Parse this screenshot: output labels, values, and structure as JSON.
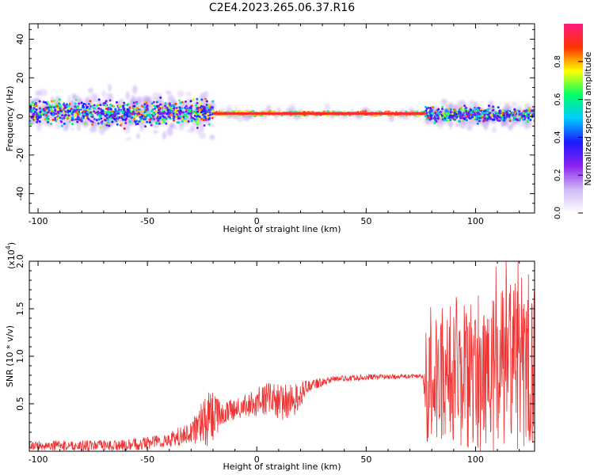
{
  "title": "C2E4.2023.265.06.37.R16",
  "chart_data": [
    {
      "type": "heatmap",
      "xlabel": "Height of straight line (km)",
      "ylabel": "Frequency (Hz)",
      "xlim": [
        -104,
        127
      ],
      "ylim": [
        -50,
        48
      ],
      "xticks": [
        -100,
        -50,
        0,
        50,
        100
      ],
      "yticks": [
        -40,
        -20,
        0,
        20,
        40
      ],
      "colorbar": {
        "label": "Normalized spectral amplitude",
        "range": [
          0,
          1
        ],
        "ticks": [
          0.0,
          0.2,
          0.4,
          0.6,
          0.8
        ],
        "colors": [
          "#ffffff",
          "#cfb8f5",
          "#8a20f0",
          "#1a1aff",
          "#00ccff",
          "#00ff66",
          "#ffff00",
          "#ff3300",
          "#ff1a80"
        ]
      },
      "band": {
        "segments": [
          {
            "x_start": -104,
            "x_end": -20,
            "center_hz": 2,
            "spread_hz": 7,
            "style": "scattered"
          },
          {
            "x_start": -20,
            "x_end": 77,
            "center_hz": 1.5,
            "spread_hz": 1.5,
            "style": "narrow"
          },
          {
            "x_start": 77,
            "x_end": 127,
            "center_hz": 1,
            "spread_hz": 4,
            "style": "scattered"
          }
        ]
      }
    },
    {
      "type": "line",
      "xlabel": "Height of straight line (km)",
      "ylabel": "SNR (10 * v/v)",
      "y_scale_label": "(x10",
      "y_scale_exp": "4",
      "y_scale_close": ")",
      "xlim": [
        -104,
        127
      ],
      "ylim": [
        0,
        2.0
      ],
      "xticks": [
        -100,
        -50,
        0,
        50,
        100
      ],
      "yticks": [
        0.5,
        1.0,
        1.5,
        2.0
      ],
      "ytick_labels": [
        "0.5",
        "1.0",
        "1.5",
        "2.0"
      ],
      "line_color": "#ee3333",
      "trend": [
        {
          "x": -104,
          "mean": 0.06,
          "noise": 0.05
        },
        {
          "x": -60,
          "mean": 0.06,
          "noise": 0.06
        },
        {
          "x": -40,
          "mean": 0.12,
          "noise": 0.08
        },
        {
          "x": -30,
          "mean": 0.2,
          "noise": 0.12
        },
        {
          "x": -22,
          "mean": 0.35,
          "noise": 0.3
        },
        {
          "x": -15,
          "mean": 0.4,
          "noise": 0.12
        },
        {
          "x": -5,
          "mean": 0.48,
          "noise": 0.12
        },
        {
          "x": 5,
          "mean": 0.55,
          "noise": 0.18
        },
        {
          "x": 15,
          "mean": 0.5,
          "noise": 0.2
        },
        {
          "x": 25,
          "mean": 0.7,
          "noise": 0.06
        },
        {
          "x": 35,
          "mean": 0.76,
          "noise": 0.03
        },
        {
          "x": 50,
          "mean": 0.78,
          "noise": 0.03
        },
        {
          "x": 76,
          "mean": 0.79,
          "noise": 0.02
        },
        {
          "x": 78,
          "mean": 0.7,
          "noise": 0.65
        },
        {
          "x": 100,
          "mean": 0.7,
          "noise": 0.7
        },
        {
          "x": 115,
          "mean": 0.85,
          "noise": 0.95
        },
        {
          "x": 127,
          "mean": 0.9,
          "noise": 0.8
        }
      ]
    }
  ]
}
